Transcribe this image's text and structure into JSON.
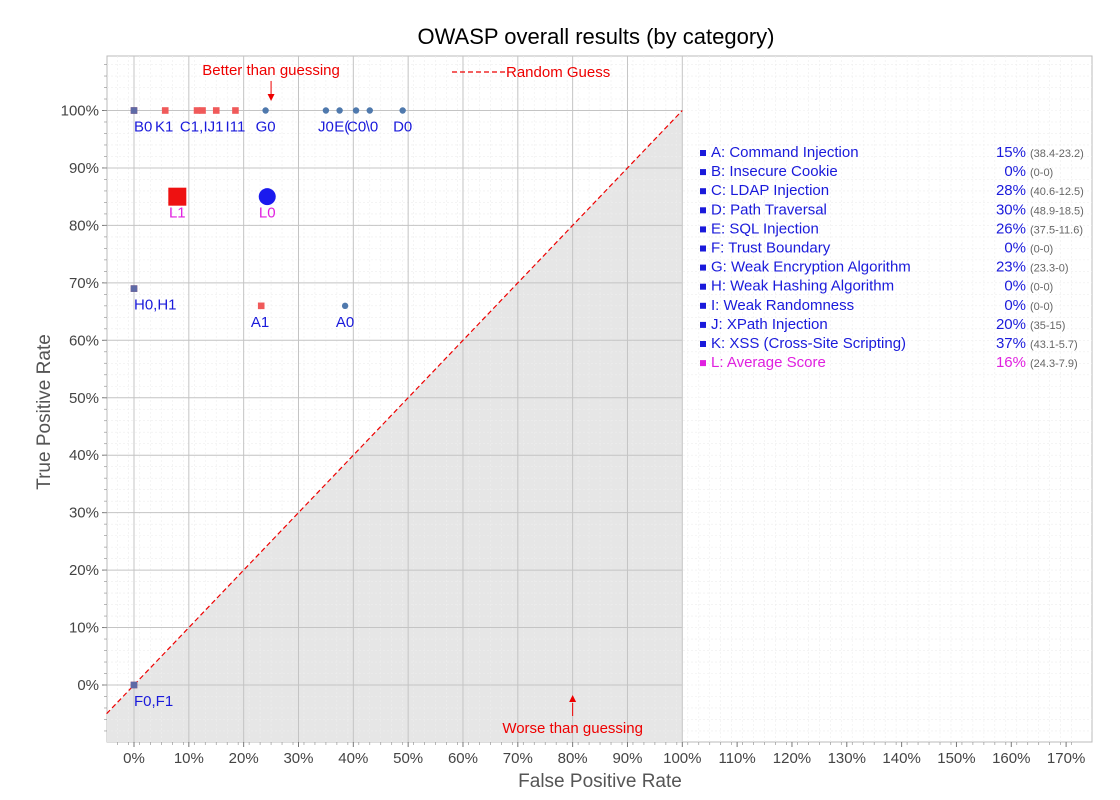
{
  "colors": {
    "tool0": "#4f79ad",
    "tool1": "#f05a5a",
    "average_big_0": "#1a1aee",
    "average_big_1": "#ee1111",
    "diagonal": "#ee0000",
    "text_blue": "#1a1adb",
    "text_magenta": "#e020e0",
    "annotation": "#ee0000",
    "shade": "#e6e6e6"
  },
  "chart_data": {
    "type": "scatter",
    "title": "OWASP overall results (by category)",
    "xlabel": "False Positive Rate",
    "ylabel": "True Positive Rate",
    "xlim": [
      -5,
      172
    ],
    "ylim": [
      -10,
      110
    ],
    "x_ticks": [
      0,
      10,
      20,
      30,
      40,
      50,
      60,
      70,
      80,
      90,
      100,
      110,
      120,
      130,
      140,
      150,
      160,
      170
    ],
    "x_tick_labels": [
      "0%",
      "10%",
      "20%",
      "30%",
      "40%",
      "50%",
      "60%",
      "70%",
      "80%",
      "90%",
      "100%",
      "110%",
      "120%",
      "130%",
      "140%",
      "150%",
      "160%",
      "170%"
    ],
    "y_ticks": [
      0,
      10,
      20,
      30,
      40,
      50,
      60,
      70,
      80,
      90,
      100
    ],
    "y_tick_labels": [
      "0%",
      "10%",
      "20%",
      "30%",
      "40%",
      "50%",
      "60%",
      "70%",
      "80%",
      "90%",
      "100%"
    ],
    "grid": true,
    "diagonal": {
      "label": "Random Guess",
      "from": [
        -5,
        -5
      ],
      "to": [
        100,
        100
      ]
    },
    "annotations": {
      "better": {
        "text": "Better than guessing",
        "x": 25,
        "y": 100
      },
      "worse": {
        "text": "Worse than guessing",
        "x": 80,
        "y": 0
      }
    },
    "series": [
      {
        "marker": "circle",
        "points": [
          {
            "x": 0,
            "y": 100
          },
          {
            "x": 24,
            "y": 100
          },
          {
            "x": 35,
            "y": 100
          },
          {
            "x": 37.5,
            "y": 100
          },
          {
            "x": 40.5,
            "y": 100
          },
          {
            "x": 43,
            "y": 100
          },
          {
            "x": 49,
            "y": 100
          },
          {
            "x": 0,
            "y": 69
          },
          {
            "x": 38.5,
            "y": 66
          },
          {
            "x": 0,
            "y": 0
          }
        ]
      },
      {
        "marker": "square",
        "points": [
          {
            "x": 0,
            "y": 100
          },
          {
            "x": 5.7,
            "y": 100
          },
          {
            "x": 11.5,
            "y": 100
          },
          {
            "x": 12.5,
            "y": 100
          },
          {
            "x": 15,
            "y": 100
          },
          {
            "x": 18.5,
            "y": 100
          },
          {
            "x": 0,
            "y": 69
          },
          {
            "x": 23.2,
            "y": 66
          },
          {
            "x": 0,
            "y": 0
          }
        ]
      }
    ],
    "averages": [
      {
        "label": "L0",
        "x": 24.3,
        "y": 85,
        "marker": "circle"
      },
      {
        "label": "L1",
        "x": 7.9,
        "y": 85,
        "marker": "square"
      }
    ],
    "point_labels": [
      {
        "text": "B0",
        "x": 0,
        "y": 100
      },
      {
        "text": "K1",
        "x": 5.5,
        "y": 100
      },
      {
        "text": "C1,",
        "x": 10.5,
        "y": 100
      },
      {
        "text": "IJ1",
        "x": 14.5,
        "y": 100
      },
      {
        "text": "I11",
        "x": 18.5,
        "y": 100
      },
      {
        "text": "G0",
        "x": 24,
        "y": 100
      },
      {
        "text": "J0",
        "x": 35,
        "y": 100
      },
      {
        "text": "E(",
        "x": 37.9,
        "y": 100
      },
      {
        "text": "C0",
        "x": 40.6,
        "y": 100
      },
      {
        "text": "\\0",
        "x": 43.4,
        "y": 100
      },
      {
        "text": "D0",
        "x": 49,
        "y": 100
      },
      {
        "text": "H0,H1",
        "x": 0,
        "y": 69
      },
      {
        "text": "A1",
        "x": 23,
        "y": 66
      },
      {
        "text": "A0",
        "x": 38.5,
        "y": 66
      },
      {
        "text": "F0,F1",
        "x": 0,
        "y": 0
      },
      {
        "text": "L1",
        "x": 7.9,
        "y": 85,
        "avg": true
      },
      {
        "text": "L0",
        "x": 24.3,
        "y": 85,
        "avg": true
      }
    ],
    "legend": {
      "placement": "right",
      "entries": [
        {
          "name": "A: Command Injection",
          "score": "15%",
          "range": "(38.4-23.2)"
        },
        {
          "name": "B: Insecure Cookie",
          "score": "0%",
          "range": "(0-0)"
        },
        {
          "name": "C: LDAP Injection",
          "score": "28%",
          "range": "(40.6-12.5)"
        },
        {
          "name": "D: Path Traversal",
          "score": "30%",
          "range": "(48.9-18.5)"
        },
        {
          "name": "E: SQL Injection",
          "score": "26%",
          "range": "(37.5-11.6)"
        },
        {
          "name": "F: Trust Boundary",
          "score": "0%",
          "range": "(0-0)"
        },
        {
          "name": "G: Weak Encryption Algorithm",
          "score": "23%",
          "range": "(23.3-0)"
        },
        {
          "name": "H: Weak Hashing Algorithm",
          "score": "0%",
          "range": "(0-0)"
        },
        {
          "name": "I:  Weak Randomness",
          "score": "0%",
          "range": "(0-0)"
        },
        {
          "name": "J:  XPath Injection",
          "score": "20%",
          "range": "(35-15)"
        },
        {
          "name": "K: XSS (Cross-Site Scripting)",
          "score": "37%",
          "range": "(43.1-5.7)"
        },
        {
          "name": "L: Average Score",
          "score": "16%",
          "range": "(24.3-7.9)",
          "highlight": true
        }
      ]
    }
  }
}
